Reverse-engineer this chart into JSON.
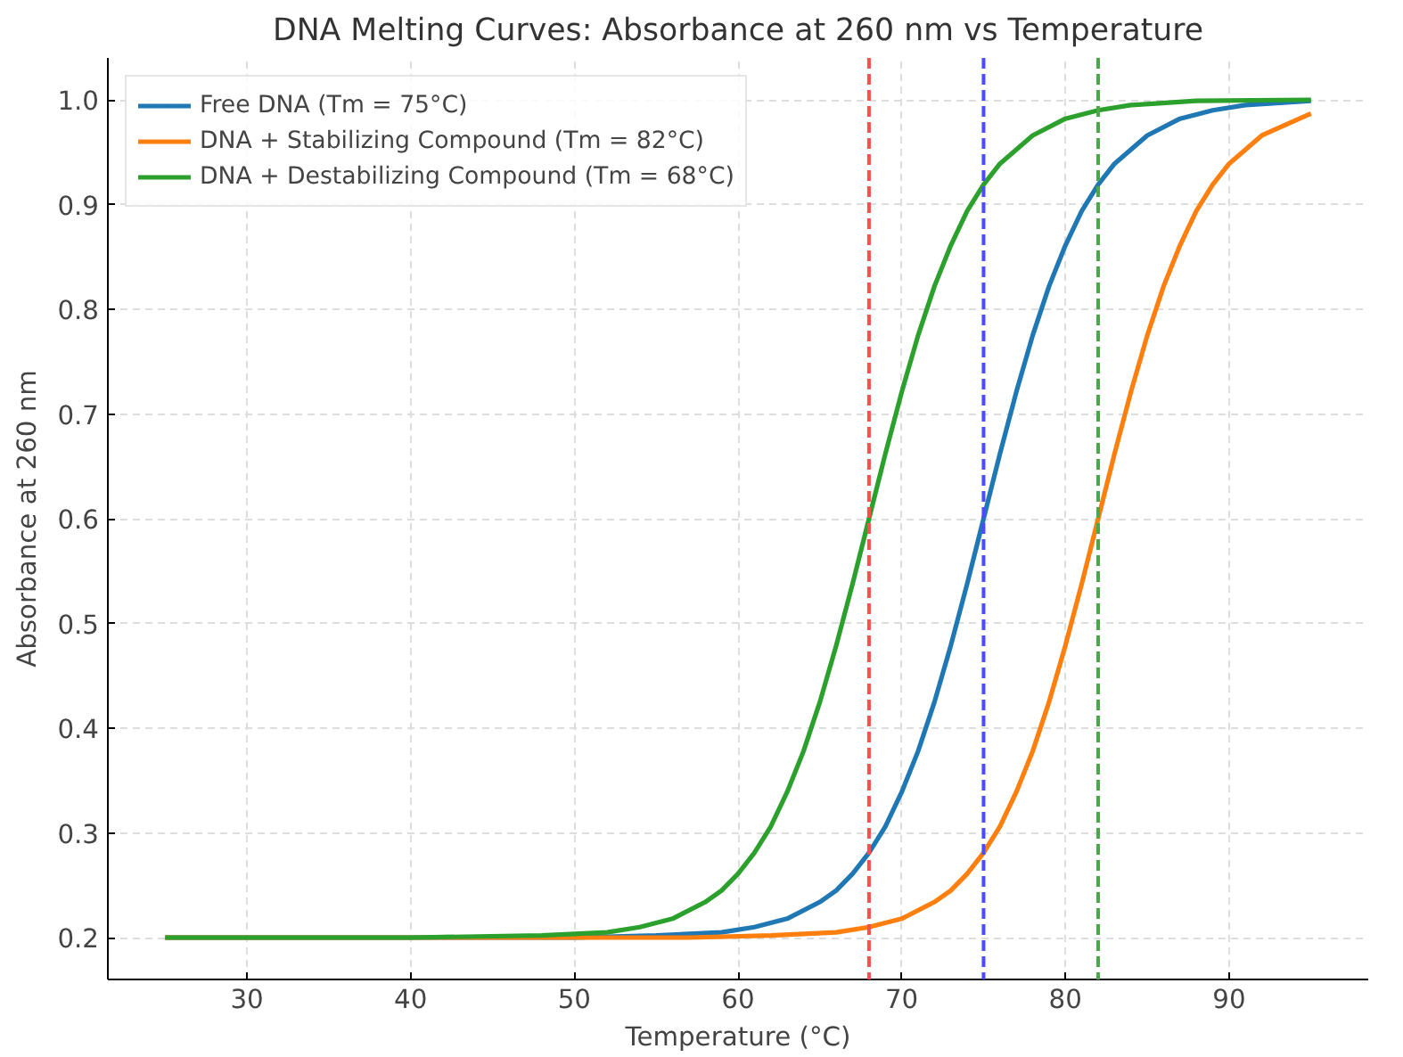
{
  "chart_data": {
    "type": "line",
    "title": "DNA Melting Curves: Absorbance at 260 nm vs Temperature",
    "xlabel": "Temperature (°C)",
    "ylabel": "Absorbance at 260 nm",
    "xlim": [
      21.5,
      98.5
    ],
    "ylim": [
      0.16,
      1.04
    ],
    "xticks": [
      30,
      40,
      50,
      60,
      70,
      80,
      90
    ],
    "yticks": [
      0.2,
      0.3,
      0.4,
      0.5,
      0.6,
      0.7,
      0.8,
      0.9,
      {
        "value": 1,
        "label": "1.0"
      }
    ],
    "grid": true,
    "legend": "top left",
    "line_style": "solid",
    "marker": "none",
    "series": [
      {
        "name": "Free DNA (Tm = 75°C)",
        "color": "#1f77b4",
        "x": [
          25,
          50,
          55,
          59,
          61,
          63,
          65,
          66,
          67,
          68,
          69,
          70,
          71,
          72,
          73,
          74,
          75,
          76,
          77,
          78,
          79,
          80,
          81,
          82,
          83,
          85,
          87,
          89,
          91,
          95
        ],
        "values": [
          0.2,
          0.2,
          0.202,
          0.205,
          0.21,
          0.218,
          0.234,
          0.245,
          0.261,
          0.281,
          0.306,
          0.339,
          0.378,
          0.425,
          0.479,
          0.538,
          0.6,
          0.662,
          0.721,
          0.775,
          0.822,
          0.861,
          0.894,
          0.919,
          0.939,
          0.966,
          0.982,
          0.99,
          0.995,
          0.999
        ]
      },
      {
        "name": "DNA + Stabilizing Compound (Tm = 82°C)",
        "color": "#ff7f0e",
        "x": [
          25,
          50,
          57,
          62,
          66,
          68,
          70,
          72,
          73,
          74,
          75,
          76,
          77,
          78,
          79,
          80,
          81,
          82,
          83,
          84,
          85,
          86,
          87,
          88,
          89,
          90,
          92,
          95
        ],
        "values": [
          0.2,
          0.2,
          0.2,
          0.202,
          0.205,
          0.21,
          0.218,
          0.234,
          0.245,
          0.261,
          0.281,
          0.306,
          0.339,
          0.378,
          0.425,
          0.479,
          0.538,
          0.6,
          0.662,
          0.721,
          0.775,
          0.822,
          0.861,
          0.894,
          0.919,
          0.939,
          0.966,
          0.987
        ]
      },
      {
        "name": "DNA + Destabilizing Compound (Tm = 68°C)",
        "color": "#2ca02c",
        "x": [
          25,
          40,
          48,
          52,
          54,
          56,
          58,
          59,
          60,
          61,
          62,
          63,
          64,
          65,
          66,
          67,
          68,
          69,
          70,
          71,
          72,
          73,
          74,
          75,
          76,
          78,
          80,
          82,
          84,
          88,
          95
        ],
        "values": [
          0.2,
          0.2,
          0.202,
          0.205,
          0.21,
          0.218,
          0.234,
          0.245,
          0.261,
          0.281,
          0.306,
          0.339,
          0.378,
          0.425,
          0.479,
          0.538,
          0.6,
          0.662,
          0.721,
          0.775,
          0.822,
          0.861,
          0.894,
          0.919,
          0.939,
          0.966,
          0.982,
          0.99,
          0.995,
          0.999,
          1.0
        ]
      }
    ],
    "ref_lines": [
      {
        "axis": "x",
        "value": 68,
        "color": "#ff4c4c",
        "line_style": "dashed"
      },
      {
        "axis": "x",
        "value": 75,
        "color": "#4c4cff",
        "line_style": "dashed"
      },
      {
        "axis": "x",
        "value": 82,
        "color": "#4ca64c",
        "line_style": "dashed"
      }
    ]
  }
}
